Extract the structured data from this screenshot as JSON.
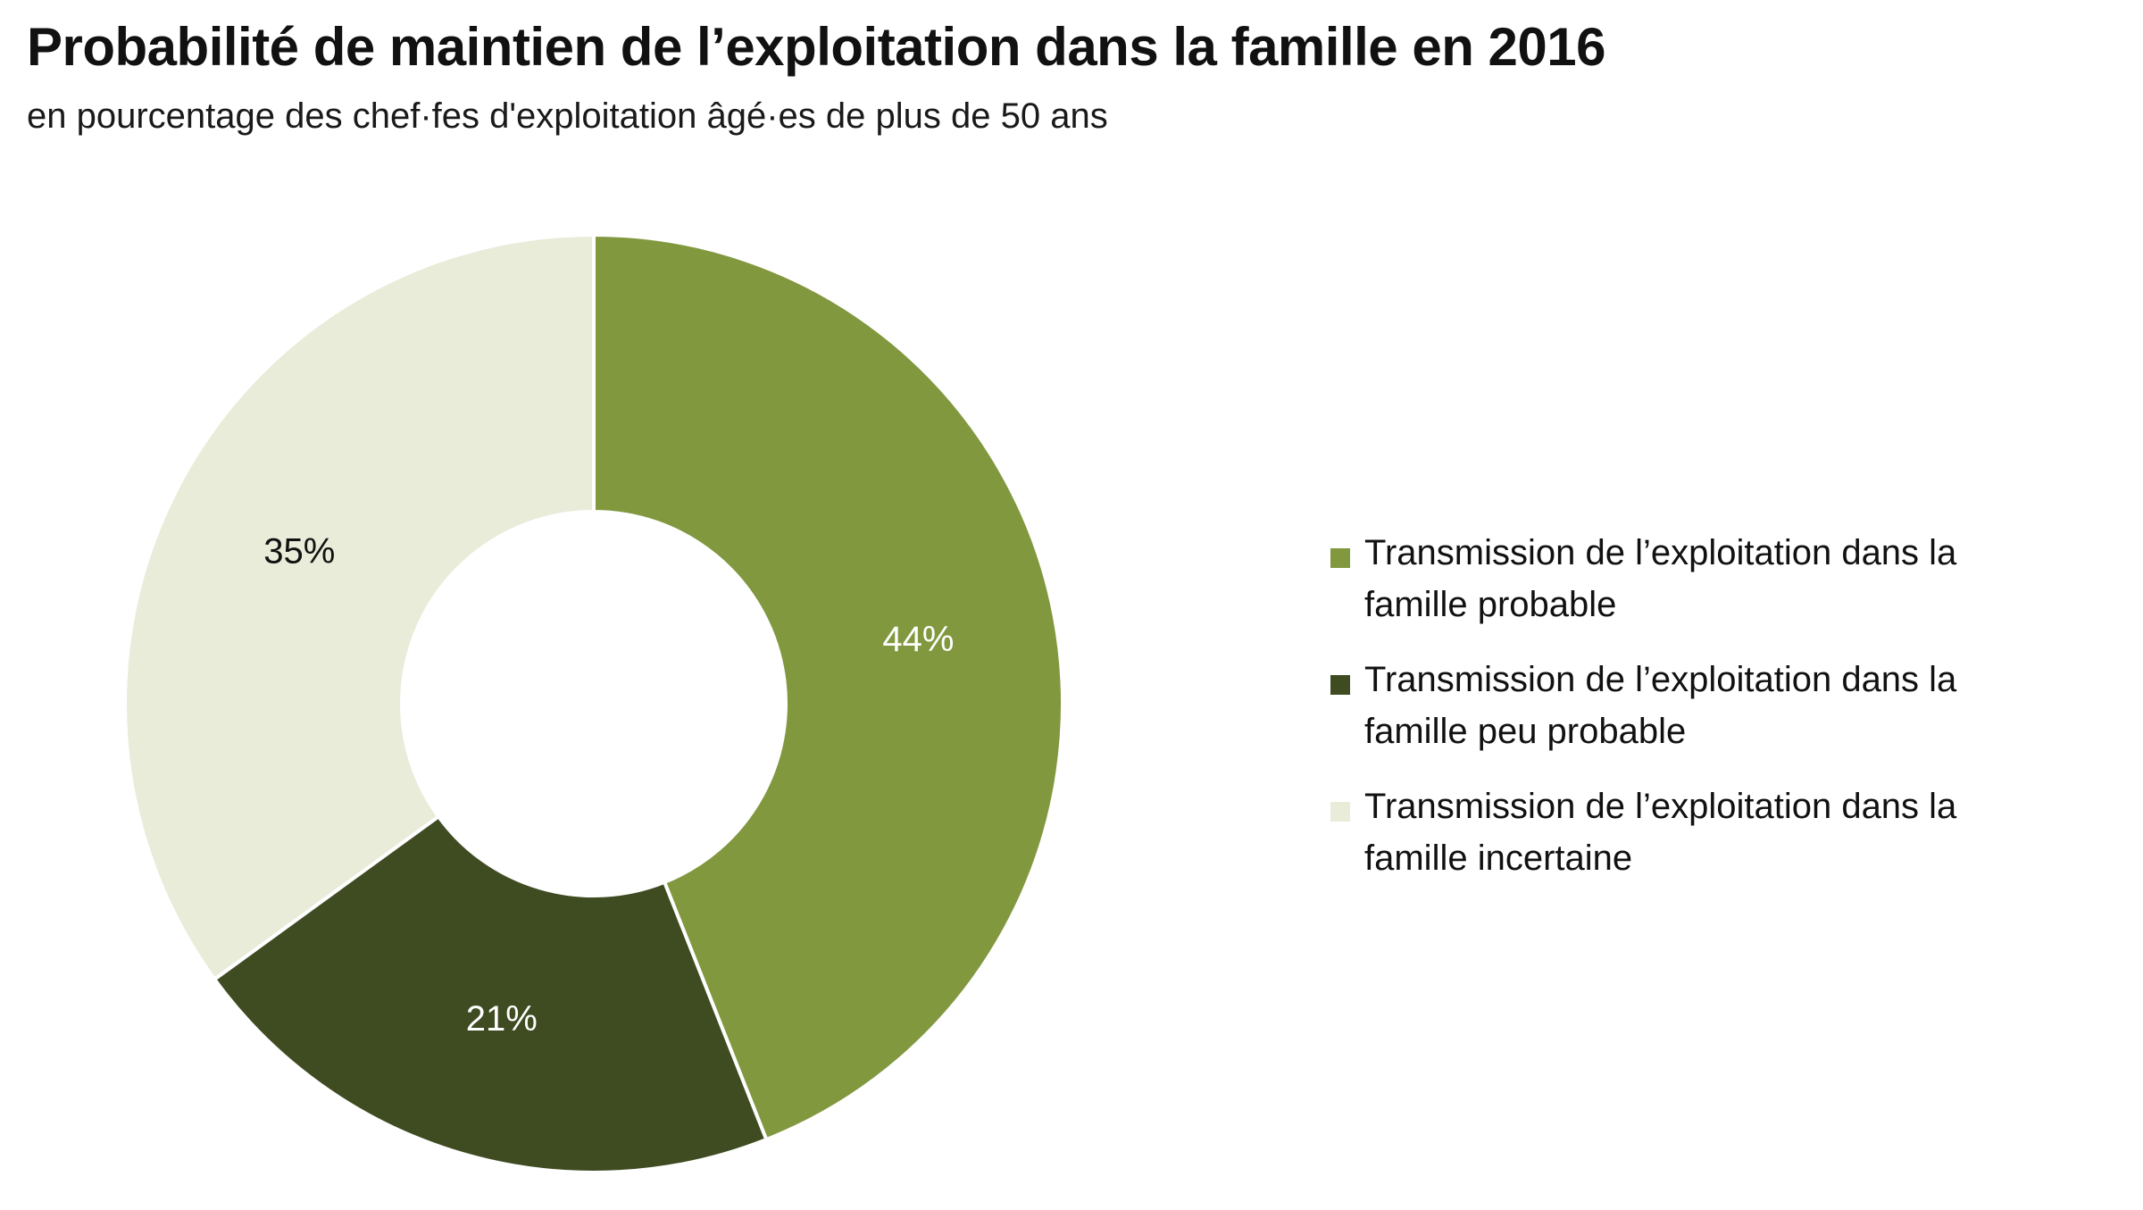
{
  "title": "Probabilité de maintien de l’exploitation dans la famille en 2016",
  "subtitle": "en pourcentage des chef·fes d'exploitation âgé·es de plus de 50 ans",
  "chart_data": {
    "type": "pie",
    "donut": true,
    "legend_position": "right",
    "slices": [
      {
        "label": "Transmission de l’exploitation dans la famille probable",
        "value": 44,
        "display": "44%",
        "color": "#81983f",
        "label_color": "#ffffff"
      },
      {
        "label": "Transmission de l’exploitation dans la famille peu probable",
        "value": 21,
        "display": "21%",
        "color": "#3f4c22",
        "label_color": "#ffffff"
      },
      {
        "label": "Transmission de l’exploitation dans la famille incertaine",
        "value": 35,
        "display": "35%",
        "color": "#e8ecd8",
        "label_color": "#111111"
      }
    ]
  }
}
